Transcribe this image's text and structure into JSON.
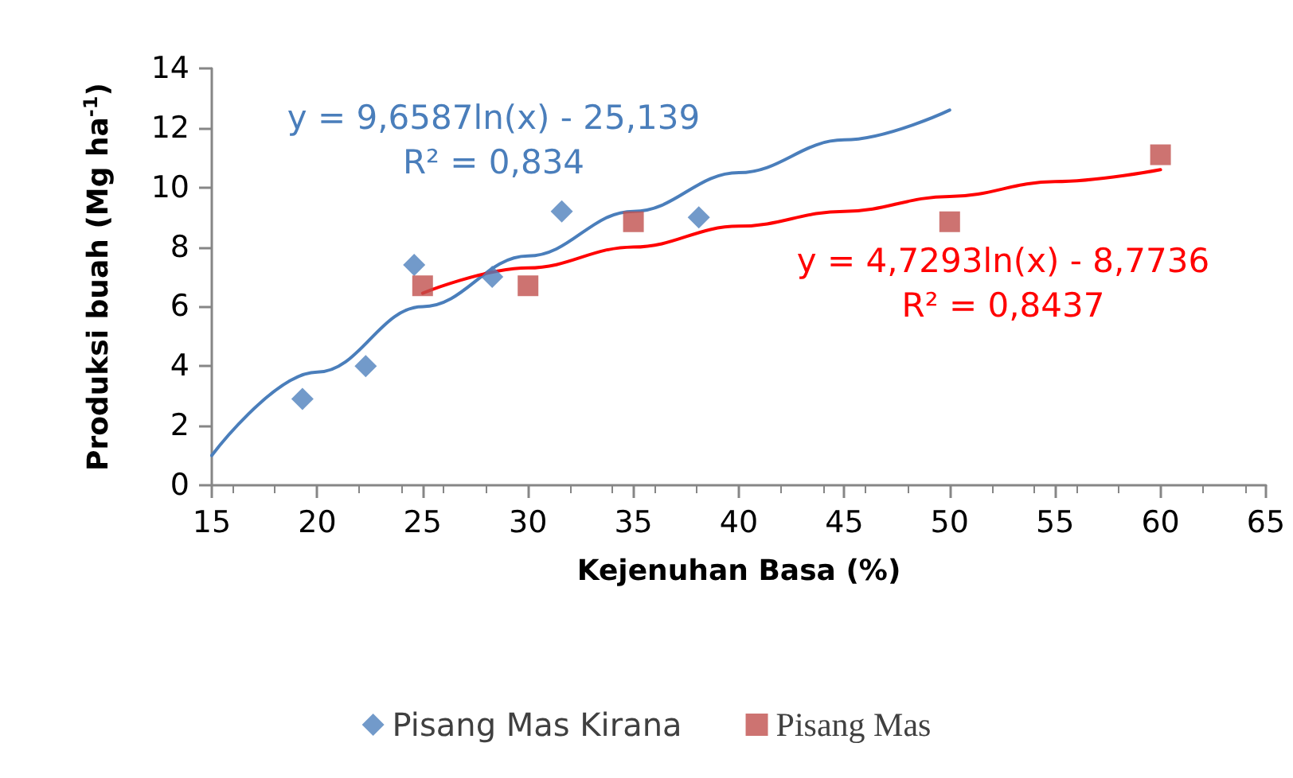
{
  "chart_data": {
    "type": "scatter",
    "xlabel": "Kejenuhan Basa (%)",
    "ylabel": "Produksi buah (Mg ha$^{-1}$)",
    "xlim": [
      15,
      65
    ],
    "xticks": [
      15,
      20,
      25,
      30,
      35,
      40,
      45,
      50,
      55,
      60,
      65
    ],
    "ylim": [
      0,
      14
    ],
    "yticks": [
      0,
      2,
      4,
      6,
      8,
      10,
      12,
      14
    ],
    "grid": false,
    "legend": "bottom",
    "series": [
      {
        "name": "Pisang Mas Kirana",
        "color": "#4f81bd",
        "marker": "diamond",
        "x": [
          19.3,
          22.3,
          24.6,
          28.3,
          31.6,
          38.1
        ],
        "values": [
          2.9,
          4.0,
          7.4,
          7.0,
          9.2,
          9.0
        ]
      },
      {
        "name": "Pisang Mas",
        "color": "#c0504d",
        "marker": "square",
        "x": [
          25,
          30,
          35,
          50,
          60
        ],
        "values": [
          6.7,
          6.7,
          8.85,
          8.85,
          11.1
        ]
      },
      {
        "type": "line",
        "color": "#4a7ebb",
        "marker": "none",
        "x": [
          15,
          20,
          25,
          30,
          35,
          40,
          45,
          50
        ],
        "values": [
          1.0,
          3.8,
          6.0,
          7.7,
          9.2,
          10.5,
          11.6,
          12.6
        ]
      },
      {
        "type": "line",
        "color": "#ff0000",
        "marker": "none",
        "x": [
          25,
          30,
          35,
          40,
          45,
          50,
          55,
          60
        ],
        "values": [
          6.45,
          7.3,
          8.0,
          8.7,
          9.2,
          9.7,
          10.2,
          10.6
        ]
      }
    ],
    "annotations": [
      "y = 9,6587ln(x) - 25,139\nR² = 0,834",
      "y = 4,7293ln(x) - 8,7736\nR² = 0,8437"
    ]
  }
}
